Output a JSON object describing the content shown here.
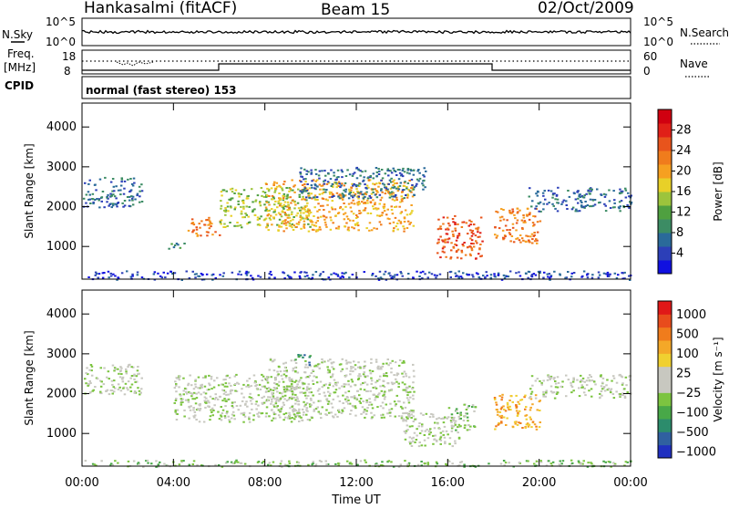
{
  "header": {
    "station": "Hankasalmi (fitACF)",
    "beam": "Beam 15",
    "date": "02/Oct/2009"
  },
  "top_panels": {
    "nsky_label": "N.Sky",
    "nsearch_label": "N.Search",
    "nsky_ticks": [
      "10^5",
      "10^0"
    ],
    "nsearch_ticks": [
      "10^5",
      "10^0"
    ],
    "freq_label_line1": "Freq.",
    "freq_label_line2": "[MHz]",
    "freq_ticks": [
      "18",
      "8"
    ],
    "nave_label": "Nave",
    "nave_ticks": [
      "60",
      "0"
    ],
    "cpid_label": "CPID",
    "cpid_text": "normal (fast stereo) 153"
  },
  "chart_data": [
    {
      "type": "heatmap",
      "title": "",
      "xlabel": "",
      "ylabel": "Slant Range [km]",
      "x_ticks": [
        "00:00",
        "04:00",
        "08:00",
        "12:00",
        "16:00",
        "20:00",
        "00:00"
      ],
      "xlim": [
        0,
        24
      ],
      "y_ticks": [
        1000,
        2000,
        3000,
        4000
      ],
      "ylim": [
        180,
        4600
      ],
      "colorbar": {
        "label": "Power [dB]",
        "ticks": [
          "4",
          "8",
          "12",
          "16",
          "20",
          "24",
          "28"
        ],
        "colors": [
          "#1010e0",
          "#2c3fb8",
          "#2a6a9a",
          "#3c8c64",
          "#4fa040",
          "#9cc43c",
          "#e8d028",
          "#f6a020",
          "#f07c1c",
          "#e8541c",
          "#e02018",
          "#d00010"
        ]
      },
      "regions": [
        {
          "t": [
            0.0,
            2.6
          ],
          "r": [
            2000,
            2750
          ],
          "level": 2
        },
        {
          "t": [
            4.6,
            6.0
          ],
          "r": [
            1250,
            1750
          ],
          "level": 8
        },
        {
          "t": [
            3.5,
            4.5
          ],
          "r": [
            950,
            1100
          ],
          "level": 3
        },
        {
          "t": [
            6.0,
            10.0
          ],
          "r": [
            1500,
            2500
          ],
          "level": 5
        },
        {
          "t": [
            8.0,
            14.5
          ],
          "r": [
            1400,
            2700
          ],
          "level": 7
        },
        {
          "t": [
            9.5,
            14.5
          ],
          "r": [
            2200,
            3000
          ],
          "level": 2
        },
        {
          "t": [
            14.3,
            15.0
          ],
          "r": [
            2400,
            3000
          ],
          "level": 2
        },
        {
          "t": [
            15.5,
            17.5
          ],
          "r": [
            700,
            1800
          ],
          "level": 9
        },
        {
          "t": [
            18.0,
            20.0
          ],
          "r": [
            1100,
            2000
          ],
          "level": 8
        },
        {
          "t": [
            19.5,
            24.0
          ],
          "r": [
            1900,
            2500
          ],
          "level": 2
        },
        {
          "t": [
            0.0,
            24.0
          ],
          "r": [
            180,
            400
          ],
          "level": 1
        }
      ]
    },
    {
      "type": "heatmap",
      "title": "",
      "xlabel": "Time UT",
      "ylabel": "Slant Range [km]",
      "x_ticks": [
        "00:00",
        "04:00",
        "08:00",
        "12:00",
        "16:00",
        "20:00",
        "00:00"
      ],
      "xlim": [
        0,
        24
      ],
      "y_ticks": [
        1000,
        2000,
        3000,
        4000
      ],
      "ylim": [
        180,
        4600
      ],
      "colorbar": {
        "label": "Velocity [m s⁻¹]",
        "ticks": [
          "1000",
          "500",
          "100",
          "25",
          "−25",
          "−100",
          "−500",
          "−1000"
        ],
        "colors": [
          "#2030c0",
          "#3060a0",
          "#2c8c6c",
          "#48a848",
          "#7cc440",
          "#c8c8c0",
          "#c8c8c0",
          "#f0d030",
          "#f4a828",
          "#f07c1c",
          "#e84c1c",
          "#e01818"
        ]
      },
      "regions": [
        {
          "t": [
            0.0,
            2.6
          ],
          "r": [
            2000,
            2750
          ],
          "level": 5
        },
        {
          "t": [
            4.0,
            10.0
          ],
          "r": [
            1300,
            2500
          ],
          "level": 5
        },
        {
          "t": [
            8.0,
            14.5
          ],
          "r": [
            1400,
            2900
          ],
          "level": 5
        },
        {
          "t": [
            14.0,
            16.5
          ],
          "r": [
            700,
            1600
          ],
          "level": 5
        },
        {
          "t": [
            16.0,
            17.2
          ],
          "r": [
            1100,
            1750
          ],
          "level": 4
        },
        {
          "t": [
            18.0,
            20.0
          ],
          "r": [
            1100,
            2000
          ],
          "level": 8
        },
        {
          "t": [
            19.5,
            24.0
          ],
          "r": [
            1900,
            2500
          ],
          "level": 5
        },
        {
          "t": [
            9.3,
            10.0
          ],
          "r": [
            2700,
            3000
          ],
          "level": 2
        },
        {
          "t": [
            0.0,
            24.0
          ],
          "r": [
            180,
            350
          ],
          "level": 4
        }
      ]
    }
  ]
}
